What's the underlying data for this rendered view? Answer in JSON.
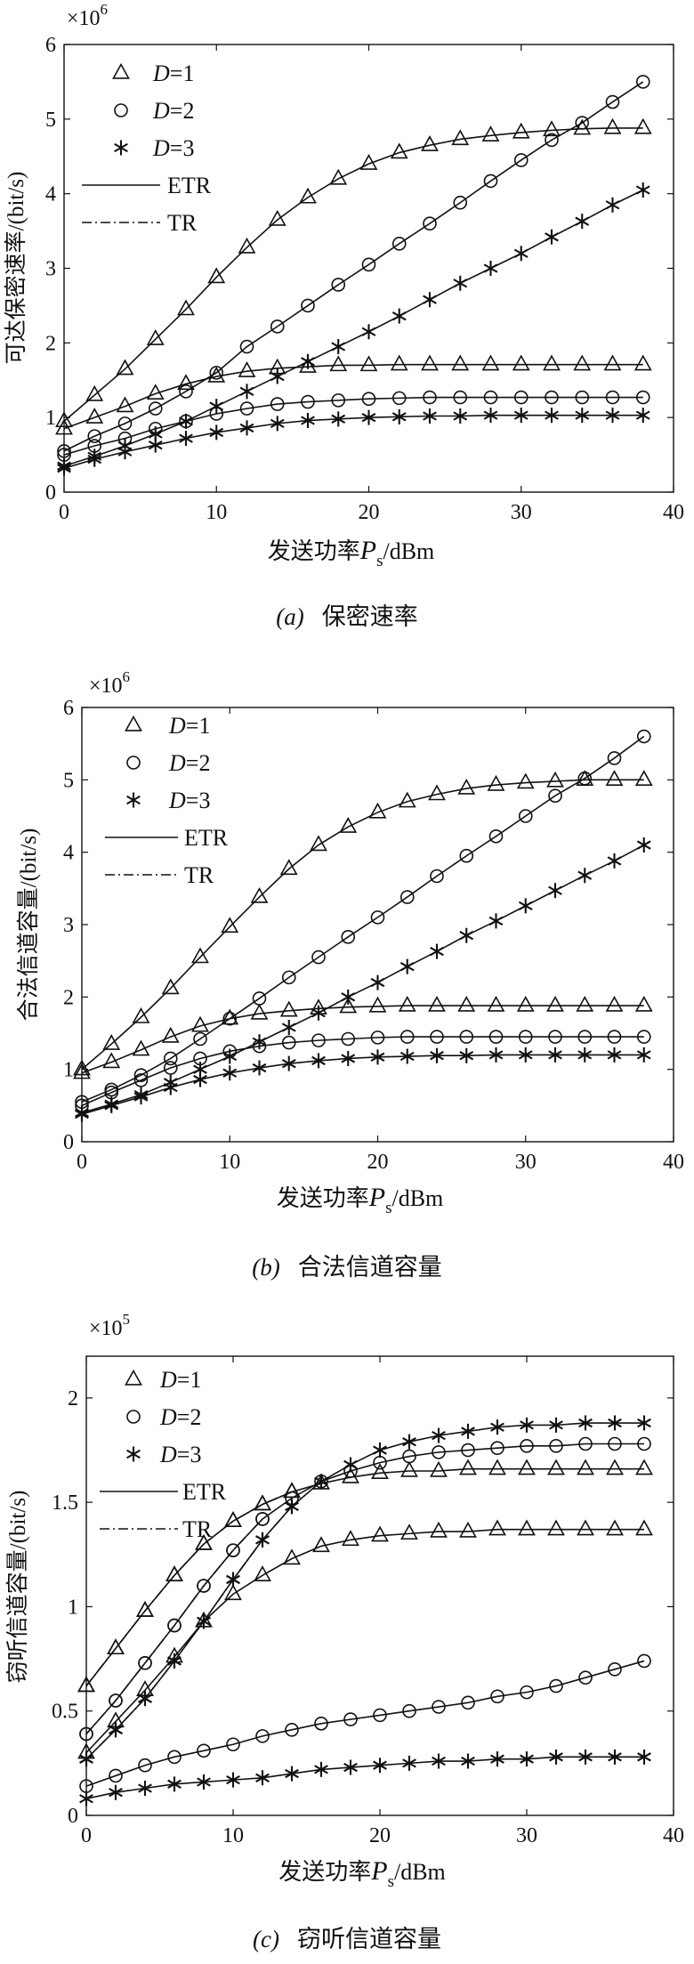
{
  "chart_data": [
    {
      "type": "line",
      "panel": "(a)",
      "caption": "保密速率",
      "ylabel": "可达保密速率/(bit/s)",
      "xlabel_main": "发送功率",
      "xlabel_var": "P",
      "xlabel_sub": "s",
      "xlabel_unit": "/dBm",
      "multiplier_base": "×10",
      "multiplier_exp": "6",
      "ylim": [
        0,
        6
      ],
      "yticks": [
        "0",
        "1",
        "2",
        "3",
        "4",
        "5",
        "6"
      ],
      "xlim": [
        0,
        40
      ],
      "xticks": [
        "0",
        "10",
        "20",
        "30",
        "40"
      ],
      "legend": [
        {
          "kind": "marker",
          "marker": "triangle",
          "prefix": "D",
          "suffix": "=1"
        },
        {
          "kind": "marker",
          "marker": "circle",
          "prefix": "D",
          "suffix": "=2"
        },
        {
          "kind": "marker",
          "marker": "star",
          "prefix": "D",
          "suffix": "=3"
        },
        {
          "kind": "line",
          "dash": "solid",
          "label": "ETR"
        },
        {
          "kind": "line",
          "dash": "dashdot",
          "label": "TR"
        }
      ],
      "x": [
        0,
        2,
        4,
        6,
        8,
        10,
        12,
        14,
        16,
        18,
        20,
        22,
        24,
        26,
        28,
        30,
        32,
        34,
        36,
        38
      ],
      "series": [
        {
          "marker": "triangle",
          "dash": "solid",
          "values": [
            0.95,
            1.3,
            1.65,
            2.05,
            2.45,
            2.88,
            3.28,
            3.65,
            3.95,
            4.2,
            4.4,
            4.55,
            4.65,
            4.73,
            4.78,
            4.82,
            4.85,
            4.87,
            4.88,
            4.88
          ]
        },
        {
          "marker": "circle",
          "dash": "solid",
          "values": [
            0.55,
            0.75,
            0.92,
            1.12,
            1.35,
            1.6,
            1.95,
            2.22,
            2.5,
            2.78,
            3.05,
            3.33,
            3.6,
            3.88,
            4.17,
            4.45,
            4.72,
            4.95,
            5.23,
            5.5
          ]
        },
        {
          "marker": "star",
          "dash": "solid",
          "values": [
            0.35,
            0.48,
            0.62,
            0.78,
            0.95,
            1.15,
            1.35,
            1.55,
            1.75,
            1.95,
            2.15,
            2.36,
            2.58,
            2.8,
            3.0,
            3.2,
            3.42,
            3.63,
            3.85,
            4.05
          ]
        },
        {
          "marker": "triangle",
          "dash": "solid",
          "values": [
            0.85,
            1.0,
            1.15,
            1.32,
            1.45,
            1.55,
            1.62,
            1.66,
            1.68,
            1.7,
            1.7,
            1.71,
            1.71,
            1.71,
            1.71,
            1.71,
            1.71,
            1.71,
            1.71,
            1.71
          ]
        },
        {
          "marker": "circle",
          "dash": "solid",
          "values": [
            0.5,
            0.62,
            0.72,
            0.85,
            0.95,
            1.05,
            1.12,
            1.18,
            1.21,
            1.23,
            1.25,
            1.26,
            1.27,
            1.27,
            1.27,
            1.27,
            1.27,
            1.27,
            1.27,
            1.27
          ]
        },
        {
          "marker": "star",
          "dash": "solid",
          "values": [
            0.32,
            0.44,
            0.54,
            0.63,
            0.72,
            0.8,
            0.86,
            0.92,
            0.96,
            0.98,
            1.0,
            1.01,
            1.02,
            1.02,
            1.03,
            1.03,
            1.03,
            1.03,
            1.03,
            1.03
          ]
        }
      ]
    },
    {
      "type": "line",
      "panel": "(b)",
      "caption": "合法信道容量",
      "ylabel": "合法信道容量/(bit/s)",
      "xlabel_main": "发送功率",
      "xlabel_var": "P",
      "xlabel_sub": "s",
      "xlabel_unit": "/dBm",
      "multiplier_base": "×10",
      "multiplier_exp": "6",
      "ylim": [
        0,
        6
      ],
      "yticks": [
        "0",
        "1",
        "2",
        "3",
        "4",
        "5",
        "6"
      ],
      "xlim": [
        0,
        40
      ],
      "xticks": [
        "0",
        "10",
        "20",
        "30",
        "40"
      ],
      "legend": [
        {
          "kind": "marker",
          "marker": "triangle",
          "prefix": "D",
          "suffix": "=1"
        },
        {
          "kind": "marker",
          "marker": "circle",
          "prefix": "D",
          "suffix": "=2"
        },
        {
          "kind": "marker",
          "marker": "star",
          "prefix": "D",
          "suffix": "=3"
        },
        {
          "kind": "line",
          "dash": "solid",
          "label": "ETR"
        },
        {
          "kind": "line",
          "dash": "dashdot",
          "label": "TR"
        }
      ],
      "x": [
        0,
        2,
        4,
        6,
        8,
        10,
        12,
        14,
        16,
        18,
        20,
        22,
        24,
        26,
        28,
        30,
        32,
        34,
        36,
        38
      ],
      "series": [
        {
          "marker": "triangle",
          "dash": "solid",
          "values": [
            1.0,
            1.35,
            1.72,
            2.12,
            2.55,
            2.97,
            3.38,
            3.77,
            4.1,
            4.35,
            4.55,
            4.7,
            4.8,
            4.88,
            4.93,
            4.96,
            4.98,
            5.0,
            5.0,
            5.0
          ]
        },
        {
          "marker": "circle",
          "dash": "solid",
          "values": [
            0.55,
            0.72,
            0.92,
            1.15,
            1.42,
            1.7,
            1.98,
            2.27,
            2.55,
            2.83,
            3.1,
            3.38,
            3.67,
            3.95,
            4.22,
            4.5,
            4.78,
            5.02,
            5.3,
            5.6
          ]
        },
        {
          "marker": "star",
          "dash": "solid",
          "values": [
            0.4,
            0.52,
            0.65,
            0.82,
            1.0,
            1.18,
            1.38,
            1.58,
            1.78,
            2.0,
            2.2,
            2.42,
            2.63,
            2.85,
            3.05,
            3.26,
            3.47,
            3.68,
            3.88,
            4.1
          ]
        },
        {
          "marker": "triangle",
          "dash": "solid",
          "values": [
            0.95,
            1.1,
            1.27,
            1.45,
            1.6,
            1.7,
            1.77,
            1.81,
            1.84,
            1.86,
            1.87,
            1.88,
            1.88,
            1.88,
            1.88,
            1.88,
            1.88,
            1.88,
            1.88,
            1.88
          ]
        },
        {
          "marker": "circle",
          "dash": "solid",
          "values": [
            0.5,
            0.68,
            0.85,
            1.02,
            1.15,
            1.25,
            1.32,
            1.37,
            1.4,
            1.42,
            1.44,
            1.45,
            1.45,
            1.45,
            1.45,
            1.45,
            1.45,
            1.45,
            1.45,
            1.45
          ]
        },
        {
          "marker": "star",
          "dash": "solid",
          "values": [
            0.38,
            0.5,
            0.62,
            0.75,
            0.86,
            0.95,
            1.02,
            1.08,
            1.12,
            1.15,
            1.17,
            1.18,
            1.19,
            1.19,
            1.2,
            1.2,
            1.2,
            1.2,
            1.2,
            1.2
          ]
        }
      ]
    },
    {
      "type": "line",
      "panel": "(c)",
      "caption": "窃听信道容量",
      "ylabel": "窃听信道容量/(bit/s)",
      "xlabel_main": "发送功率",
      "xlabel_var": "P",
      "xlabel_sub": "s",
      "xlabel_unit": "/dBm",
      "multiplier_base": "×10",
      "multiplier_exp": "5",
      "ylim": [
        0,
        2.2
      ],
      "yticks": [
        "0",
        "0.5",
        "1",
        "1.5",
        "2"
      ],
      "ytick_values": [
        0,
        0.5,
        1,
        1.5,
        2
      ],
      "xlim": [
        0,
        40
      ],
      "xticks": [
        "0",
        "10",
        "20",
        "30",
        "40"
      ],
      "legend": [
        {
          "kind": "marker",
          "marker": "triangle",
          "prefix": "D",
          "suffix": "=1"
        },
        {
          "kind": "marker",
          "marker": "circle",
          "prefix": "D",
          "suffix": "=2"
        },
        {
          "kind": "marker",
          "marker": "star",
          "prefix": "D",
          "suffix": "=3"
        },
        {
          "kind": "line",
          "dash": "solid",
          "label": "ETR"
        },
        {
          "kind": "line",
          "dash": "dashdot",
          "label": "TR"
        }
      ],
      "x": [
        0,
        2,
        4,
        6,
        8,
        10,
        12,
        14,
        16,
        18,
        20,
        22,
        24,
        26,
        28,
        30,
        32,
        34,
        36,
        38
      ],
      "series": [
        {
          "marker": "triangle",
          "dash": "dashdot",
          "x": [
            0,
            2,
            4,
            6,
            8,
            10,
            12,
            14
          ],
          "values": [
            0.62,
            0.8,
            0.98,
            1.15,
            1.3,
            1.41,
            1.49,
            1.55
          ]
        },
        {
          "marker": "circle",
          "dash": "dashdot",
          "x": [
            0,
            2,
            4,
            6,
            8,
            10,
            12
          ],
          "values": [
            0.39,
            0.55,
            0.73,
            0.91,
            1.1,
            1.27,
            1.42
          ]
        },
        {
          "marker": "star",
          "dash": "dashdot",
          "x": [
            0,
            2,
            4,
            6,
            8,
            10,
            12,
            14
          ],
          "values": [
            0.27,
            0.41,
            0.56,
            0.74,
            0.93,
            1.13,
            1.32,
            1.48
          ]
        },
        {
          "marker": "triangle",
          "dash": "solid",
          "values": [
            0.62,
            0.8,
            0.98,
            1.15,
            1.3,
            1.41,
            1.49,
            1.55,
            1.59,
            1.62,
            1.64,
            1.65,
            1.65,
            1.66,
            1.66,
            1.66,
            1.66,
            1.66,
            1.66,
            1.66
          ]
        },
        {
          "marker": "circle",
          "dash": "solid",
          "values": [
            0.39,
            0.55,
            0.73,
            0.91,
            1.1,
            1.27,
            1.42,
            1.52,
            1.6,
            1.65,
            1.69,
            1.72,
            1.74,
            1.75,
            1.76,
            1.77,
            1.77,
            1.78,
            1.78,
            1.78
          ]
        },
        {
          "marker": "star",
          "dash": "solid",
          "values": [
            0.27,
            0.41,
            0.56,
            0.74,
            0.93,
            1.13,
            1.32,
            1.48,
            1.6,
            1.68,
            1.75,
            1.79,
            1.82,
            1.84,
            1.86,
            1.87,
            1.87,
            1.88,
            1.88,
            1.88
          ]
        },
        {
          "marker": "triangle",
          "dash": "solid",
          "values": [
            0.3,
            0.45,
            0.6,
            0.76,
            0.93,
            1.06,
            1.15,
            1.23,
            1.29,
            1.32,
            1.34,
            1.35,
            1.36,
            1.36,
            1.37,
            1.37,
            1.37,
            1.37,
            1.37,
            1.37
          ]
        },
        {
          "marker": "circle",
          "dash": "solid",
          "values": [
            0.14,
            0.19,
            0.24,
            0.28,
            0.31,
            0.34,
            0.38,
            0.41,
            0.44,
            0.46,
            0.48,
            0.5,
            0.52,
            0.54,
            0.57,
            0.59,
            0.62,
            0.66,
            0.7,
            0.74
          ]
        },
        {
          "marker": "star",
          "dash": "solid",
          "values": [
            0.08,
            0.11,
            0.13,
            0.15,
            0.16,
            0.17,
            0.18,
            0.2,
            0.22,
            0.23,
            0.24,
            0.25,
            0.26,
            0.26,
            0.27,
            0.27,
            0.28,
            0.28,
            0.28,
            0.28
          ]
        }
      ]
    }
  ]
}
